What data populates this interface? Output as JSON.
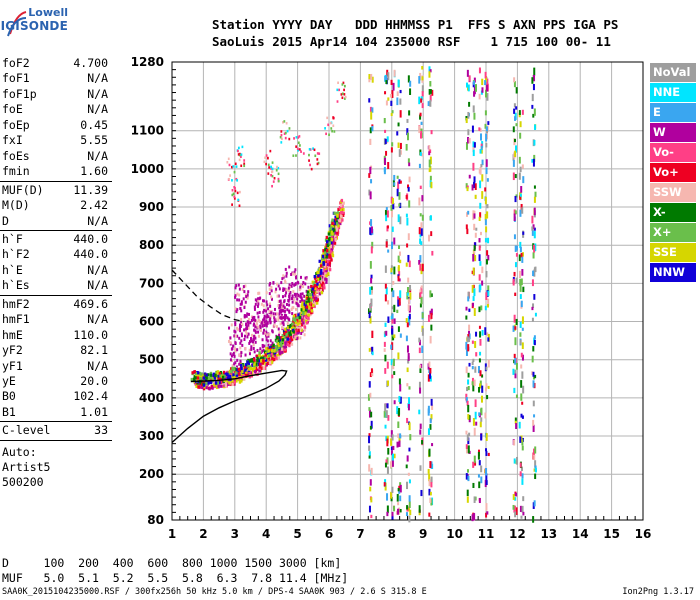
{
  "logo": {
    "line1": "Lowell",
    "line2": "DIGISONDE"
  },
  "header": {
    "line1": "Station YYYY DAY   DDD HHMMSS P1  FFS S AXN PPS IGA PS",
    "line2": "SaoLuis 2015 Apr14 104 235000 RSF    1 715 100 00- 11"
  },
  "params": [
    {
      "label": "foF2",
      "value": "4.700"
    },
    {
      "label": "foF1",
      "value": "N/A"
    },
    {
      "label": "foF1p",
      "value": "N/A"
    },
    {
      "label": "foE",
      "value": "N/A"
    },
    {
      "label": "foEp",
      "value": "0.45"
    },
    {
      "label": "fxI",
      "value": "5.55"
    },
    {
      "label": "foEs",
      "value": "N/A"
    },
    {
      "label": "fmin",
      "value": "1.60"
    },
    {
      "label": "MUF(D)",
      "value": "11.39"
    },
    {
      "label": "M(D)",
      "value": "2.42"
    },
    {
      "label": "D",
      "value": "N/A"
    },
    {
      "label": "h`F",
      "value": "440.0"
    },
    {
      "label": "h`F2",
      "value": "440.0"
    },
    {
      "label": "h`E",
      "value": "N/A"
    },
    {
      "label": "h`Es",
      "value": "N/A"
    },
    {
      "label": "hmF2",
      "value": "469.6"
    },
    {
      "label": "hmF1",
      "value": "N/A"
    },
    {
      "label": "hmE",
      "value": "110.0"
    },
    {
      "label": "yF2",
      "value": "82.1"
    },
    {
      "label": "yF1",
      "value": "N/A"
    },
    {
      "label": "yE",
      "value": "20.0"
    },
    {
      "label": "B0",
      "value": "102.4"
    },
    {
      "label": "B1",
      "value": "1.01"
    },
    {
      "label": "C-level",
      "value": "33"
    }
  ],
  "auto": {
    "line1": "Auto:",
    "line2": "Artist5",
    "line3": "500200"
  },
  "legend": [
    {
      "label": "NoVal",
      "color": "#9e9e9e"
    },
    {
      "label": "NNE",
      "color": "#00e5ff"
    },
    {
      "label": "E",
      "color": "#3aa6f0"
    },
    {
      "label": "W",
      "color": "#b0009e"
    },
    {
      "label": "Vo-",
      "color": "#ff3f86"
    },
    {
      "label": "Vo+",
      "color": "#ee0022"
    },
    {
      "label": "SSW",
      "color": "#f6b7b0"
    },
    {
      "label": "X-",
      "color": "#007a00"
    },
    {
      "label": "X+",
      "color": "#6abf4b"
    },
    {
      "label": "SSE",
      "color": "#d6d600"
    },
    {
      "label": "NNW",
      "color": "#1000d8"
    }
  ],
  "bottom": {
    "line1": "D     100  200  400  600  800 1000 1500 3000 [km]",
    "line2": "MUF   5.0  5.1  5.2  5.5  5.8  6.3  7.8 11.4 [MHz]"
  },
  "footer": {
    "left": "SAA0K_2015104235000.RSF / 300fx256h 50 kHz 5.0 km / DPS-4 SAA0K 903 / 2.6 S 315.8 E",
    "right": "Ion2Png 1.3.17"
  },
  "chart_data": {
    "type": "scatter",
    "xlim": [
      1,
      16
    ],
    "ylim": [
      80,
      1280
    ],
    "x_ticks": [
      "1",
      "2",
      "3",
      "4",
      "5",
      "6",
      "7",
      "8",
      "9",
      "10",
      "11",
      "12",
      "13",
      "14",
      "15",
      "16"
    ],
    "y_ticks": [
      "80",
      "200",
      "300",
      "400",
      "500",
      "600",
      "700",
      "800",
      "900",
      "1000",
      "1100",
      "1280"
    ],
    "grid": true,
    "legend_position": "right",
    "profile_solid": [
      [
        1.0,
        283
      ],
      [
        1.5,
        320
      ],
      [
        2.0,
        352
      ],
      [
        2.5,
        374
      ],
      [
        3.0,
        392
      ],
      [
        3.5,
        408
      ],
      [
        4.0,
        425
      ],
      [
        4.4,
        444
      ],
      [
        4.6,
        460
      ],
      [
        4.65,
        470
      ],
      [
        4.5,
        472
      ],
      [
        4.0,
        465
      ],
      [
        3.5,
        458
      ],
      [
        3.0,
        450
      ],
      [
        2.5,
        446
      ],
      [
        2.0,
        444
      ],
      [
        1.6,
        443
      ]
    ],
    "profile_dashed": [
      [
        1.0,
        735
      ],
      [
        1.4,
        700
      ],
      [
        1.8,
        665
      ],
      [
        2.2,
        640
      ],
      [
        2.6,
        618
      ],
      [
        3.0,
        605
      ],
      [
        3.3,
        600
      ]
    ],
    "trace_x": [
      [
        1.6,
        460
      ],
      [
        2.0,
        452
      ],
      [
        2.5,
        458
      ],
      [
        3.0,
        472
      ],
      [
        3.5,
        492
      ],
      [
        4.0,
        520
      ],
      [
        4.4,
        550
      ],
      [
        4.8,
        590
      ],
      [
        5.2,
        640
      ],
      [
        5.5,
        700
      ],
      [
        5.8,
        770
      ],
      [
        6.0,
        830
      ],
      [
        6.2,
        880
      ]
    ],
    "trace_o": [
      [
        1.7,
        448
      ],
      [
        2.1,
        445
      ],
      [
        2.6,
        450
      ],
      [
        3.1,
        462
      ],
      [
        3.6,
        480
      ],
      [
        4.0,
        505
      ],
      [
        4.4,
        532
      ],
      [
        4.8,
        568
      ],
      [
        5.2,
        612
      ],
      [
        5.5,
        660
      ],
      [
        5.8,
        720
      ],
      [
        6.0,
        780
      ],
      [
        6.2,
        850
      ],
      [
        6.4,
        910
      ]
    ],
    "spread_w": [
      [
        3.0,
        540
      ],
      [
        3.5,
        560
      ],
      [
        4.0,
        580
      ],
      [
        4.5,
        600
      ],
      [
        5.0,
        620
      ],
      [
        3.2,
        640
      ],
      [
        3.8,
        620
      ],
      [
        4.3,
        650
      ],
      [
        4.7,
        690
      ],
      [
        5.1,
        660
      ]
    ],
    "interference_columns": [
      7.3,
      7.8,
      8.0,
      8.2,
      8.5,
      8.9,
      9.2,
      10.4,
      10.6,
      10.8,
      11.0,
      11.9,
      12.1,
      12.5
    ],
    "upper_cloud": [
      [
        3.0,
        930
      ],
      [
        3.2,
        1040
      ],
      [
        4.0,
        1020
      ],
      [
        4.3,
        980
      ],
      [
        5.0,
        1060
      ],
      [
        5.5,
        1030
      ],
      [
        6.0,
        1120
      ],
      [
        6.4,
        1200
      ],
      [
        2.9,
        1000
      ],
      [
        4.6,
        1100
      ]
    ]
  }
}
